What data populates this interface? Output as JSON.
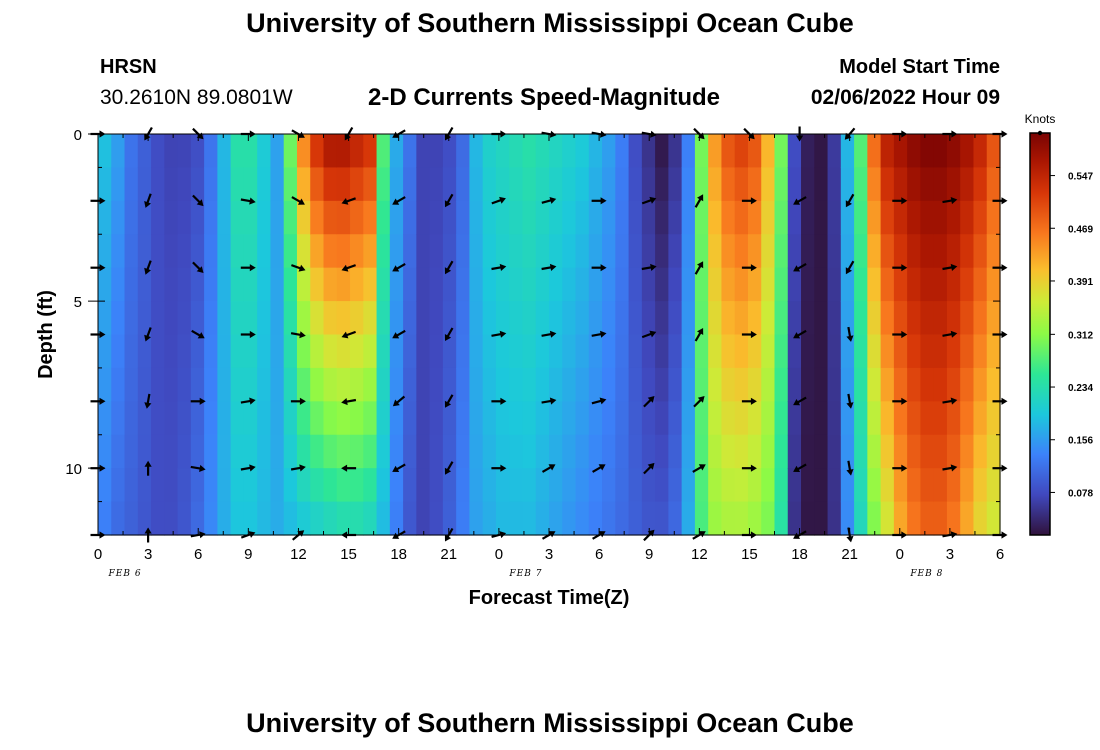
{
  "page": {
    "title": "University of Southern Mississippi Ocean Cube",
    "bottom_title": "University of Southern Mississippi Ocean Cube",
    "station_name": "HRSN",
    "station_coords": "30.2610N  89.0801W",
    "subtitle": "2-D Currents Speed-Magnitude",
    "model_start_label": "Model Start Time",
    "model_start_value": "02/06/2022 Hour 09"
  },
  "chart_data": {
    "type": "heatmap",
    "title": "2-D Currents Speed-Magnitude",
    "xlabel": "Forecast Time(Z)",
    "ylabel": "Depth (ft)",
    "units": "Knots",
    "x_tick_labels": [
      "0",
      "3",
      "6",
      "9",
      "12",
      "15",
      "18",
      "21",
      "0",
      "3",
      "6",
      "9",
      "12",
      "15",
      "18",
      "21",
      "0",
      "3",
      "6"
    ],
    "date_labels": [
      {
        "text": "FEB 6",
        "hour": 13.5
      },
      {
        "text": "FEB 7",
        "hour": 37.5
      },
      {
        "text": "FEB 8",
        "hour": 61.5
      }
    ],
    "x_range_hours": [
      0,
      54
    ],
    "y_ticks": [
      0,
      5,
      10
    ],
    "ylim": [
      0,
      12
    ],
    "depth_levels": [
      0,
      1,
      2,
      3,
      4,
      5,
      6,
      7,
      8,
      9,
      10,
      11,
      12
    ],
    "colorbar": {
      "ticks": [
        0.078,
        0.156,
        0.234,
        0.312,
        0.391,
        0.469,
        0.547
      ],
      "range": [
        0.015,
        0.61
      ]
    },
    "surface_speed": [
      0.19,
      0.16,
      0.12,
      0.1,
      0.08,
      0.07,
      0.07,
      0.08,
      0.12,
      0.18,
      0.24,
      0.24,
      0.2,
      0.16,
      0.3,
      0.46,
      0.54,
      0.58,
      0.58,
      0.56,
      0.54,
      0.28,
      0.17,
      0.12,
      0.07,
      0.07,
      0.08,
      0.11,
      0.18,
      0.21,
      0.22,
      0.23,
      0.24,
      0.23,
      0.22,
      0.21,
      0.2,
      0.18,
      0.16,
      0.13,
      0.08,
      0.05,
      0.02,
      0.05,
      0.13,
      0.3,
      0.44,
      0.5,
      0.52,
      0.5,
      0.42,
      0.3,
      0.08,
      0.03,
      0.02,
      0.06,
      0.18,
      0.28,
      0.48,
      0.56,
      0.58,
      0.6,
      0.61,
      0.61,
      0.6,
      0.58,
      0.55,
      0.5
    ],
    "bottom_speed": [
      0.13,
      0.11,
      0.1,
      0.09,
      0.08,
      0.08,
      0.09,
      0.11,
      0.14,
      0.17,
      0.19,
      0.19,
      0.18,
      0.17,
      0.18,
      0.19,
      0.2,
      0.21,
      0.22,
      0.22,
      0.21,
      0.18,
      0.13,
      0.09,
      0.07,
      0.08,
      0.1,
      0.13,
      0.16,
      0.17,
      0.18,
      0.18,
      0.18,
      0.17,
      0.16,
      0.15,
      0.14,
      0.13,
      0.12,
      0.11,
      0.1,
      0.09,
      0.09,
      0.11,
      0.17,
      0.27,
      0.32,
      0.33,
      0.33,
      0.32,
      0.3,
      0.24,
      0.05,
      0.02,
      0.02,
      0.05,
      0.14,
      0.22,
      0.3,
      0.36,
      0.42,
      0.46,
      0.48,
      0.48,
      0.46,
      0.42,
      0.38,
      0.36
    ],
    "arrow_hours": [
      0,
      3,
      6,
      9,
      12,
      15,
      18,
      21,
      24,
      27,
      30,
      33,
      36,
      39,
      42,
      45,
      48,
      51,
      54
    ],
    "arrow_depths": [
      0,
      2,
      4,
      6,
      8,
      10,
      12
    ],
    "arrow_directions_deg": [
      [
        90,
        210,
        135,
        90,
        120,
        210,
        240,
        210,
        90,
        100,
        100,
        100,
        135,
        135,
        180,
        220,
        90,
        90,
        90
      ],
      [
        90,
        200,
        135,
        100,
        120,
        250,
        240,
        210,
        70,
        75,
        90,
        70,
        30,
        90,
        240,
        210,
        90,
        80,
        90
      ],
      [
        90,
        200,
        135,
        90,
        110,
        250,
        240,
        210,
        80,
        80,
        90,
        80,
        30,
        90,
        240,
        210,
        90,
        80,
        90
      ],
      [
        90,
        200,
        120,
        90,
        100,
        250,
        240,
        210,
        80,
        80,
        80,
        70,
        30,
        90,
        240,
        170,
        90,
        80,
        90
      ],
      [
        90,
        190,
        90,
        80,
        90,
        260,
        230,
        210,
        90,
        80,
        75,
        45,
        45,
        90,
        240,
        170,
        90,
        80,
        90
      ],
      [
        90,
        0,
        100,
        80,
        80,
        270,
        240,
        210,
        90,
        60,
        60,
        45,
        60,
        90,
        240,
        170,
        90,
        80,
        90
      ],
      [
        90,
        0,
        80,
        70,
        50,
        270,
        240,
        210,
        75,
        60,
        60,
        45,
        60,
        90,
        240,
        170,
        90,
        80,
        90
      ]
    ]
  }
}
